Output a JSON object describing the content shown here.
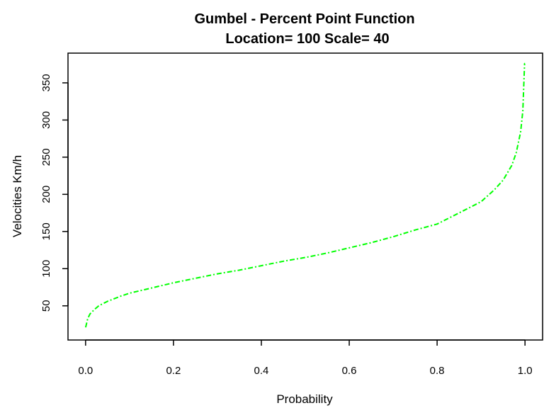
{
  "chart_data": {
    "type": "line",
    "title": "Gumbel - Percent Point Function",
    "subtitle": "Location= 100  Scale= 40",
    "xlabel": "Probability",
    "ylabel": "Velocities Km/h",
    "xlim": [
      -0.04,
      1.04
    ],
    "ylim": [
      4,
      390
    ],
    "x_ticks": [
      "0.0",
      "0.2",
      "0.4",
      "0.6",
      "0.8",
      "1.0"
    ],
    "y_ticks": [
      "50",
      "100",
      "150",
      "200",
      "250",
      "300",
      "350"
    ],
    "grid": false,
    "series": [
      {
        "color": "#00ff00",
        "line_style": "dash-dot",
        "x": [
          0.0001,
          0.001,
          0.005,
          0.01,
          0.02,
          0.03,
          0.05,
          0.08,
          0.1,
          0.15,
          0.2,
          0.25,
          0.3,
          0.35,
          0.4,
          0.45,
          0.5,
          0.55,
          0.6,
          0.65,
          0.7,
          0.75,
          0.8,
          0.85,
          0.9,
          0.93,
          0.95,
          0.97,
          0.98,
          0.99,
          0.995,
          0.999,
          0.9999
        ],
        "y": [
          21,
          23,
          33,
          39,
          45,
          50,
          56,
          63,
          67,
          74,
          81,
          87,
          93,
          98,
          104,
          110,
          115,
          121,
          128,
          135,
          143,
          152,
          160,
          175,
          190,
          206,
          219,
          239,
          256,
          284,
          312,
          376,
          376
        ]
      }
    ]
  }
}
